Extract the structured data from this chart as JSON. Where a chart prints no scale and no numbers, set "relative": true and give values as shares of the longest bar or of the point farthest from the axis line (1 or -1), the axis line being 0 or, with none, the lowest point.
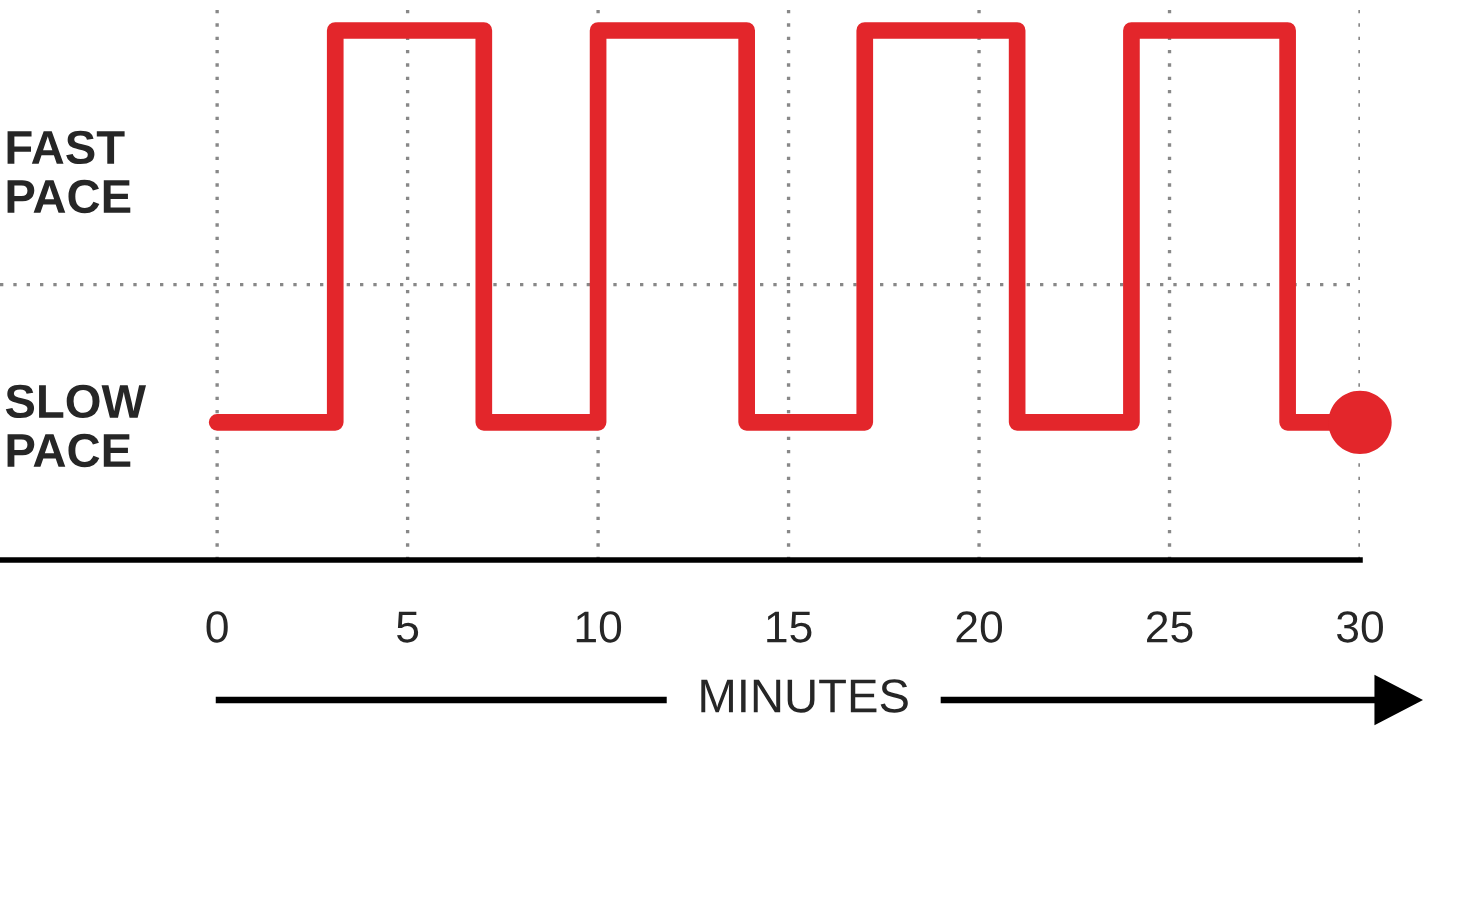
{
  "chart_data": {
    "type": "line",
    "relative": true,
    "xlabel": "MINUTES",
    "xlim": [
      -5.7,
      30
    ],
    "xticks": [
      0,
      5,
      10,
      15,
      20,
      25,
      30
    ],
    "grid": "x",
    "line_style": "solid",
    "series": [
      {
        "color": "#e3262b",
        "x": [
          0,
          3.1,
          3.1,
          7.0,
          7.0,
          10.0,
          10.0,
          13.9,
          13.9,
          17.0,
          17.0,
          21.0,
          21.0,
          24.0,
          24.0,
          28.1,
          28.1,
          30
        ],
        "values": [
          0.26,
          0.26,
          1,
          1,
          0.26,
          0.26,
          1,
          1,
          0.26,
          0.26,
          1,
          1,
          0.26,
          0.26,
          1,
          1,
          0.26,
          0.26
        ]
      },
      {
        "type": "scatter",
        "color": "#e3262b",
        "marker": "circle",
        "x": [
          30
        ],
        "values": [
          0.26
        ]
      }
    ],
    "ref_lines": [
      {
        "axis": "y",
        "value": 0.52,
        "color": "#888888",
        "line_style": "dotted"
      }
    ],
    "annotations": [
      "FAST\nPACE",
      "SLOW\nPACE"
    ]
  }
}
